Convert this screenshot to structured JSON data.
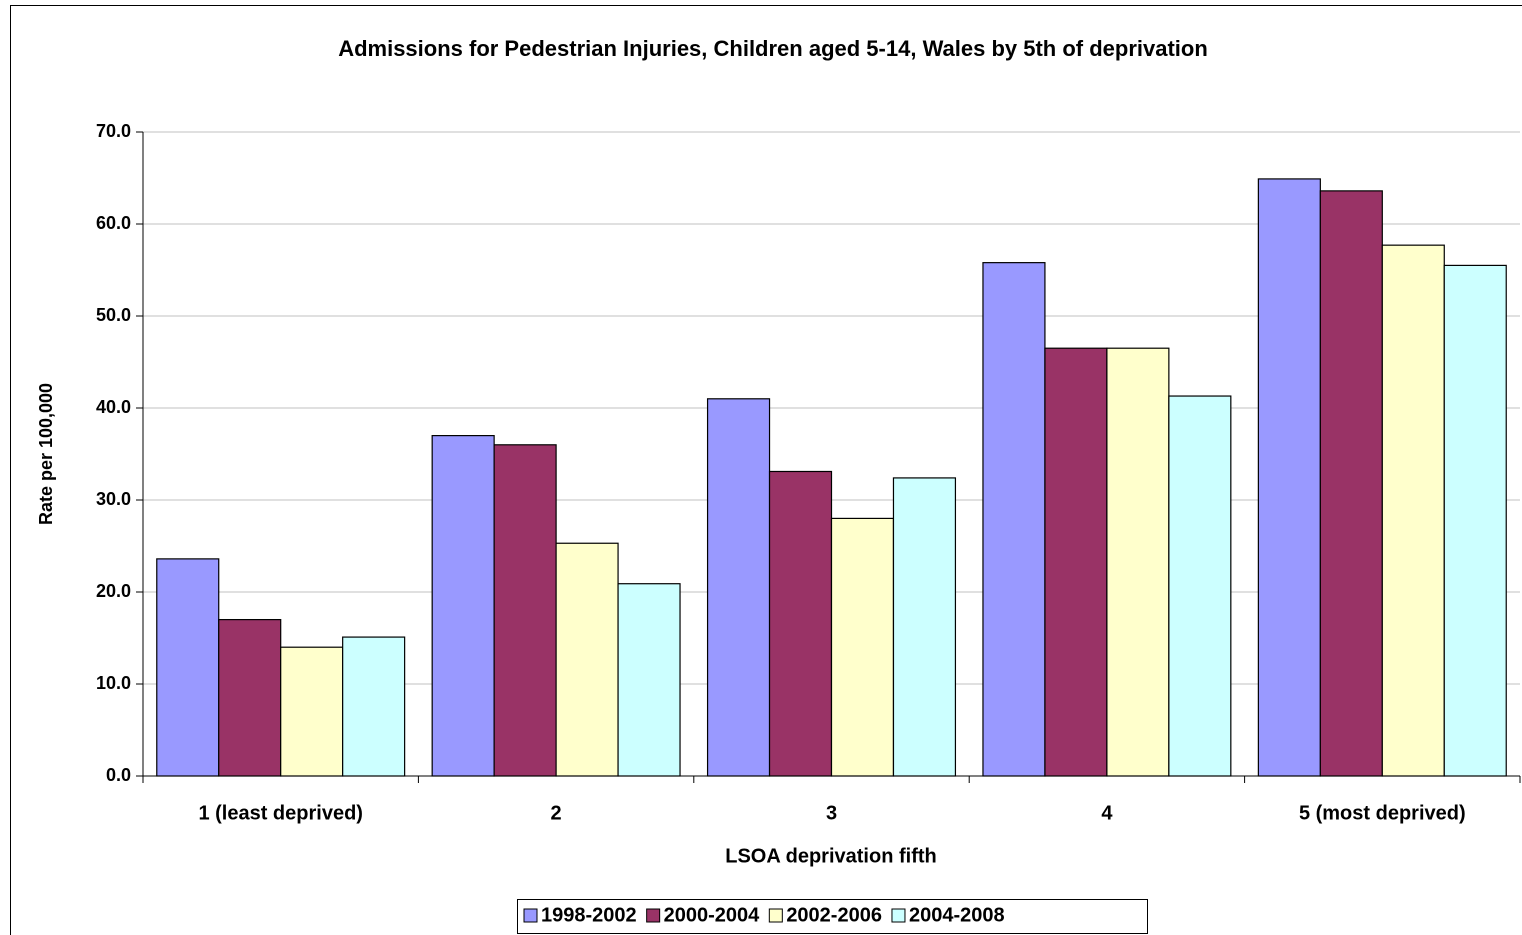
{
  "chart_data": {
    "type": "bar",
    "title": "Admissions for Pedestrian Injuries, Children aged 5-14, Wales by 5th of deprivation",
    "x_label": "LSOA deprivation fifth",
    "y_label": "Rate per 100,000",
    "categories": [
      "1 (least deprived)",
      "2",
      "3",
      "4",
      "5 (most deprived)"
    ],
    "series": [
      {
        "name": "1998-2002",
        "color": "#9999ff",
        "values": [
          23.6,
          37.0,
          41.0,
          55.8,
          64.9
        ]
      },
      {
        "name": "2000-2004",
        "color": "#993366",
        "values": [
          17.0,
          36.0,
          33.1,
          46.5,
          63.6
        ]
      },
      {
        "name": "2002-2006",
        "color": "#ffffcc",
        "values": [
          14.0,
          25.3,
          28.0,
          46.5,
          57.7
        ]
      },
      {
        "name": "2004-2008",
        "color": "#ccffff",
        "values": [
          15.1,
          20.9,
          32.4,
          41.3,
          55.5
        ]
      }
    ],
    "ylim": [
      0,
      70
    ],
    "yticks": [
      {
        "value": 0,
        "label": "0.0"
      },
      {
        "value": 10,
        "label": "10.0"
      },
      {
        "value": 20,
        "label": "20.0"
      },
      {
        "value": 30,
        "label": "30.0"
      },
      {
        "value": 40,
        "label": "40.0"
      },
      {
        "value": 50,
        "label": "50.0"
      },
      {
        "value": 60,
        "label": "60.0"
      },
      {
        "value": 70,
        "label": "70.0"
      }
    ],
    "grid": true,
    "legend": "bottom"
  }
}
